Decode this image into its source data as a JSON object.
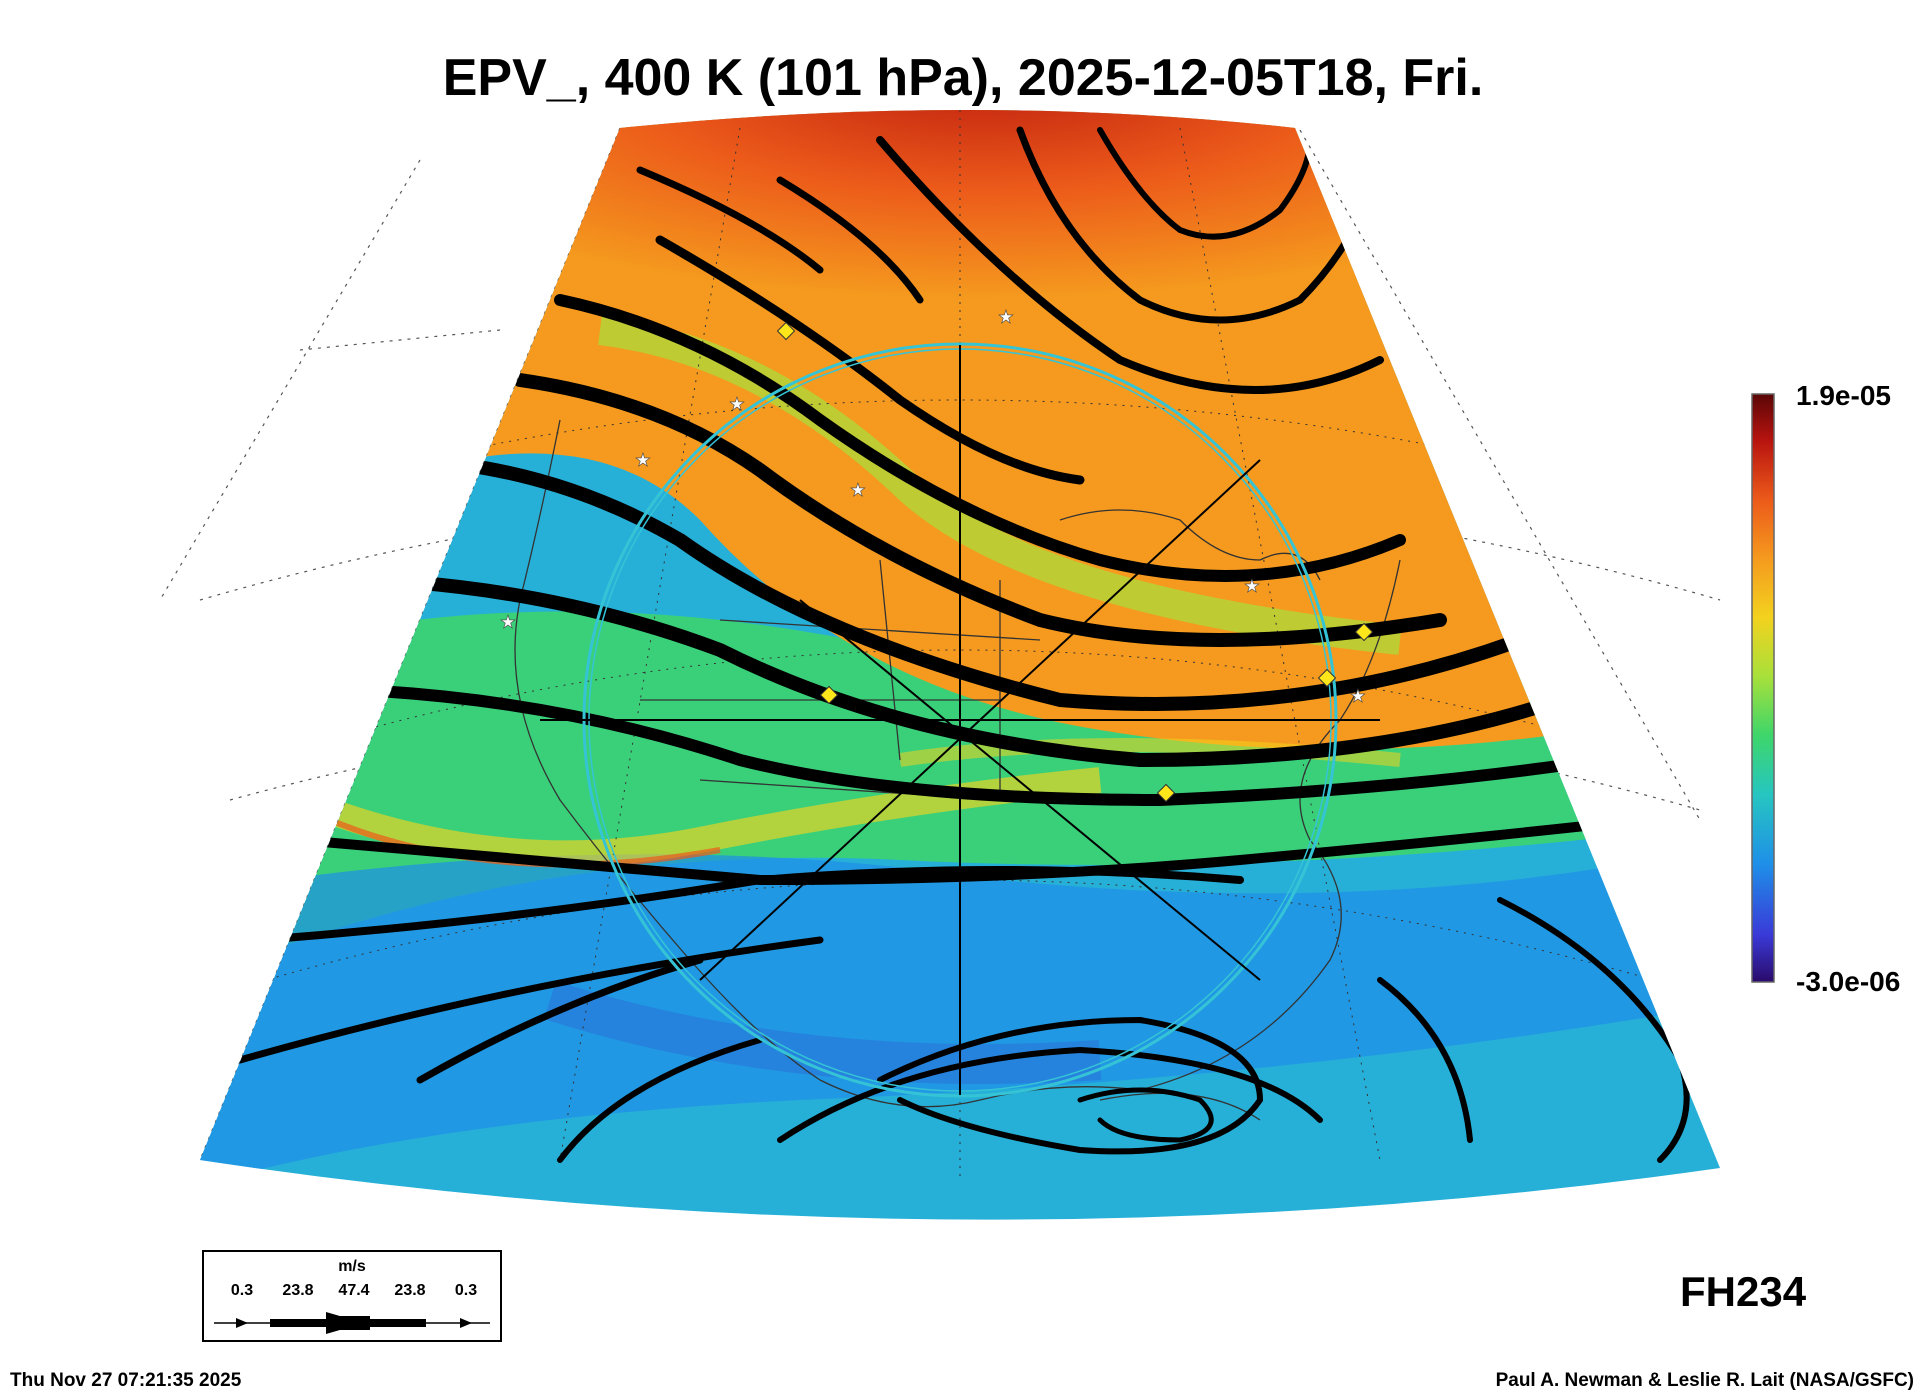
{
  "title": "EPV_, 400 K (101 hPa), 2025-12-05T18, Fri.",
  "colorbar": {
    "max_label": "1.9e-05",
    "min_label": "-3.0e-06",
    "colors": [
      "#2a0a6a",
      "#3a3ad8",
      "#1f8fe8",
      "#26c6c0",
      "#3ed66a",
      "#a8e03a",
      "#f3d21e",
      "#f59a1e",
      "#ec5a1a",
      "#b8140f",
      "#5a0606"
    ]
  },
  "forecast_hour": "FH234",
  "legend": {
    "unit": "m/s",
    "values": [
      "0.3",
      "23.8",
      "47.4",
      "23.8",
      "0.3"
    ]
  },
  "footer": {
    "timestamp": "Thu Nov 27 07:21:35 2025",
    "credit": "Paul A. Newman & Leslie R. Lait (NASA/GSFC)"
  },
  "map": {
    "field_colors": {
      "polar_high": "#ef5a1a",
      "mid_band": "#f59a1e",
      "transition": "#a8e03a",
      "subtropical": "#3ed66a",
      "tropical": "#1f8fe8"
    },
    "circle_color": "#35c4d6",
    "streamline_color": "#000000",
    "marker_colors": {
      "diamond": "#ffe61a",
      "star": "#ffffff"
    }
  }
}
